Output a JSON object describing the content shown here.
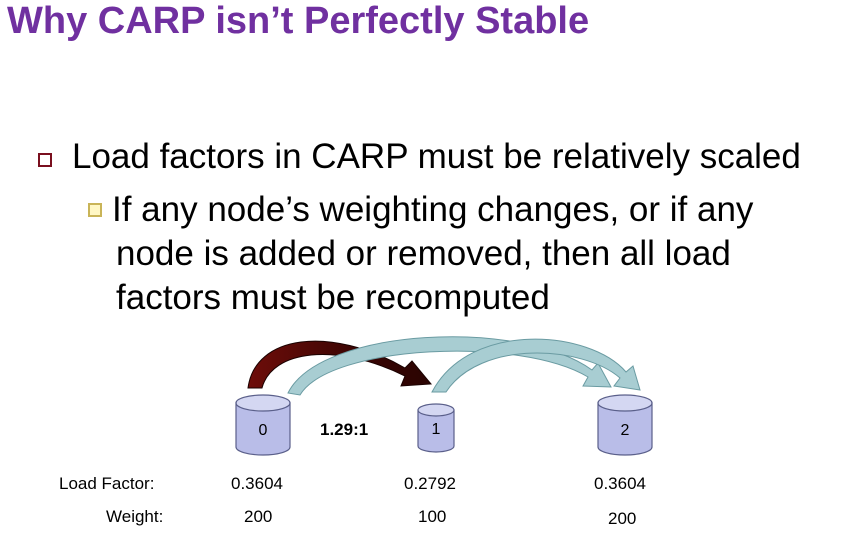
{
  "slide": {
    "title": "Why CARP isn’t Perfectly Stable",
    "bullet1": "Load factors in CARP must be relatively scaled",
    "bullet2_lines": [
      "If any node’s weighting changes, or if any",
      "node is added or removed, then all load",
      "factors must be recomputed"
    ]
  },
  "diagram": {
    "ratio_label": "1.29:1",
    "row_labels": {
      "load_factor": "Load Factor:",
      "weight": "Weight:"
    },
    "nodes": [
      {
        "id": "0",
        "load_factor": "0.3604",
        "weight": "200"
      },
      {
        "id": "1",
        "load_factor": "0.2792",
        "weight": "100"
      },
      {
        "id": "2",
        "load_factor": "0.3604",
        "weight": "200"
      }
    ],
    "colors": {
      "disk_fill": "#b9bde8",
      "disk_top": "#d4d7f2",
      "disk_stroke": "#5a5f8a",
      "arrow_red": "#8e1a14",
      "arrow_teal": "#a8cdd2"
    }
  }
}
